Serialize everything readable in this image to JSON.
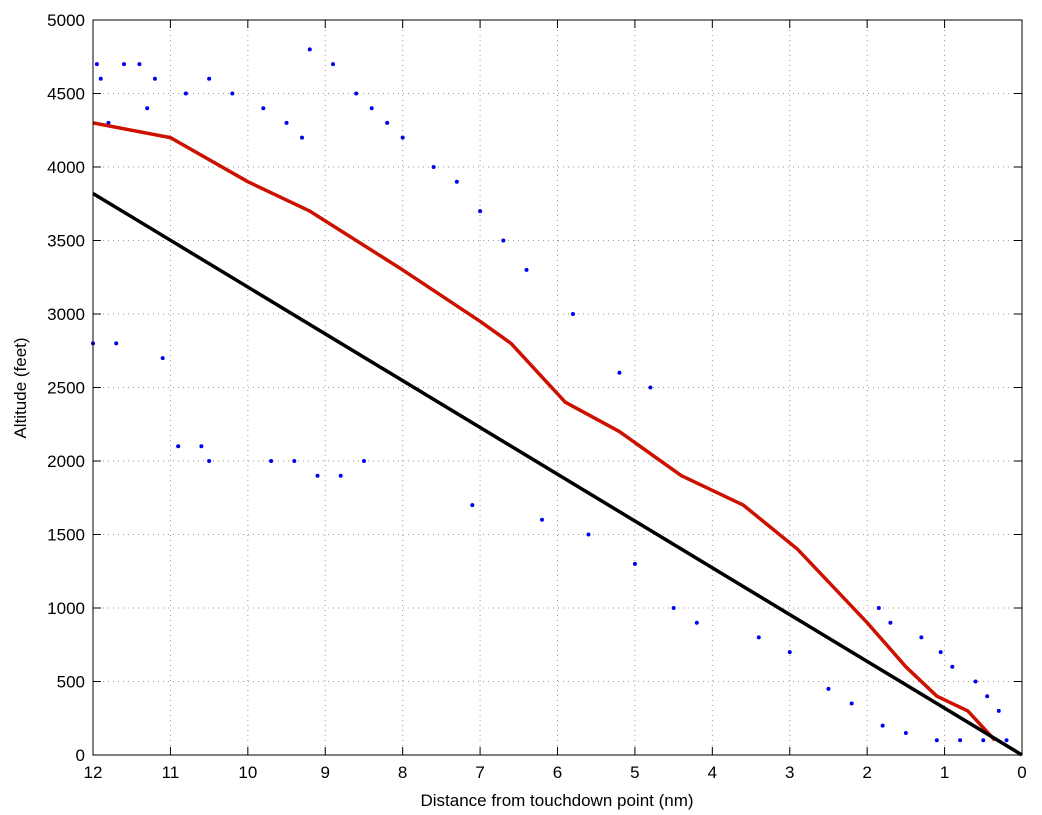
{
  "chart_data": {
    "type": "scatter",
    "title": "",
    "xlabel": "Distance from touchdown point (nm)",
    "ylabel": "Altitude (feet)",
    "xlim": [
      12,
      0
    ],
    "ylim": [
      0,
      5000
    ],
    "x_reversed": true,
    "xticks": [
      12,
      11,
      10,
      9,
      8,
      7,
      6,
      5,
      4,
      3,
      2,
      1,
      0
    ],
    "yticks": [
      0,
      500,
      1000,
      1500,
      2000,
      2500,
      3000,
      3500,
      4000,
      4500,
      5000
    ],
    "xtick_labels": [
      "12",
      "11",
      "10",
      "9",
      "8",
      "7",
      "6",
      "5",
      "4",
      "3",
      "2",
      "1",
      "0"
    ],
    "ytick_labels": [
      "0",
      "500",
      "1000",
      "1500",
      "2000",
      "2500",
      "3000",
      "3500",
      "4000",
      "4500",
      "5000"
    ],
    "grid": true,
    "legend": "none",
    "colors": {
      "scatter": "#0000ee",
      "red_line": "#cc1100",
      "black_line": "#000000"
    },
    "series": [
      {
        "kind": "scatter",
        "color": "#0000ee",
        "points": [
          [
            11.95,
            4700
          ],
          [
            11.9,
            4600
          ],
          [
            11.6,
            4700
          ],
          [
            11.4,
            4700
          ],
          [
            11.2,
            4600
          ],
          [
            10.5,
            4600
          ],
          [
            9.2,
            4800
          ],
          [
            8.9,
            4700
          ],
          [
            8.6,
            4500
          ],
          [
            8.4,
            4400
          ],
          [
            8.2,
            4300
          ],
          [
            8.0,
            4200
          ],
          [
            11.8,
            4300
          ],
          [
            11.3,
            4400
          ],
          [
            10.8,
            4500
          ],
          [
            10.2,
            4500
          ],
          [
            9.8,
            4400
          ],
          [
            9.5,
            4300
          ],
          [
            9.3,
            4200
          ],
          [
            7.6,
            4000
          ],
          [
            7.3,
            3900
          ],
          [
            7.0,
            3700
          ],
          [
            6.7,
            3500
          ],
          [
            6.4,
            3300
          ],
          [
            5.8,
            3000
          ],
          [
            5.2,
            2600
          ],
          [
            4.8,
            2500
          ],
          [
            12.0,
            2800
          ],
          [
            11.7,
            2800
          ],
          [
            11.1,
            2700
          ],
          [
            10.9,
            2100
          ],
          [
            10.6,
            2100
          ],
          [
            10.5,
            2000
          ],
          [
            9.7,
            2000
          ],
          [
            9.4,
            2000
          ],
          [
            9.1,
            1900
          ],
          [
            8.8,
            1900
          ],
          [
            8.5,
            2000
          ],
          [
            7.1,
            1700
          ],
          [
            6.2,
            1600
          ],
          [
            5.6,
            1500
          ],
          [
            5.0,
            1300
          ],
          [
            4.5,
            1000
          ],
          [
            4.2,
            900
          ],
          [
            3.4,
            800
          ],
          [
            3.0,
            700
          ],
          [
            2.5,
            450
          ],
          [
            2.2,
            350
          ],
          [
            1.8,
            200
          ],
          [
            1.5,
            150
          ],
          [
            1.1,
            100
          ],
          [
            0.8,
            100
          ],
          [
            0.5,
            100
          ],
          [
            0.2,
            100
          ],
          [
            1.85,
            1000
          ],
          [
            1.7,
            900
          ],
          [
            1.3,
            800
          ],
          [
            1.05,
            700
          ],
          [
            0.9,
            600
          ],
          [
            0.6,
            500
          ],
          [
            0.45,
            400
          ],
          [
            0.3,
            300
          ]
        ]
      },
      {
        "kind": "line",
        "color": "#cc1100",
        "x": [
          12,
          11,
          10,
          9.2,
          8,
          7,
          6.6,
          5.9,
          5.2,
          4.4,
          3.6,
          2.9,
          2.0,
          1.5,
          1.1,
          0.7,
          0.35
        ],
        "y": [
          4300,
          4200,
          3900,
          3700,
          3300,
          2950,
          2800,
          2400,
          2200,
          1900,
          1700,
          1400,
          900,
          600,
          400,
          300,
          100
        ]
      },
      {
        "kind": "line",
        "color": "#000000",
        "x": [
          12,
          0
        ],
        "y": [
          3820,
          0
        ]
      }
    ]
  }
}
